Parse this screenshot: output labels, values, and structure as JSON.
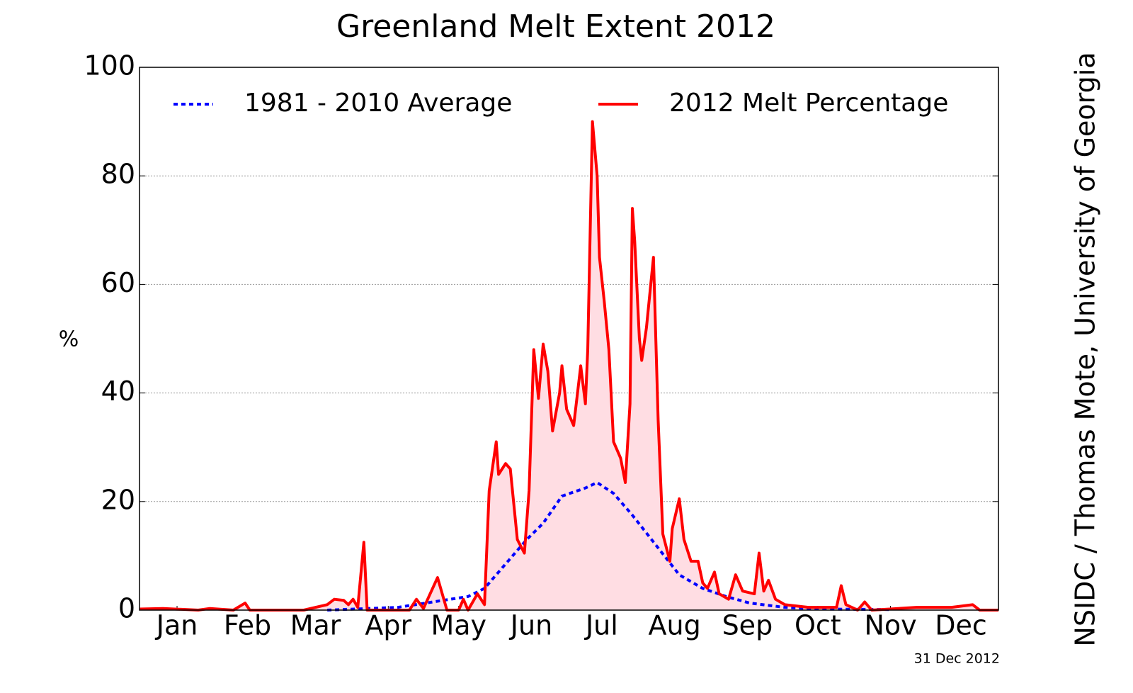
{
  "chart_data": {
    "type": "line",
    "title": "Greenland Melt Extent 2012",
    "y_label": "%",
    "credit": "NSIDC / Thomas Mote, University of Georgia",
    "date_note": "31 Dec 2012",
    "xlim": [
      0,
      366
    ],
    "xticks": [
      {
        "value": 16,
        "label": "Jan"
      },
      {
        "value": 46,
        "label": "Feb"
      },
      {
        "value": 75,
        "label": "Mar"
      },
      {
        "value": 106,
        "label": "Apr"
      },
      {
        "value": 136,
        "label": "May"
      },
      {
        "value": 167,
        "label": "Jun"
      },
      {
        "value": 197,
        "label": "Jul"
      },
      {
        "value": 228,
        "label": "Aug"
      },
      {
        "value": 259,
        "label": "Sep"
      },
      {
        "value": 289,
        "label": "Oct"
      },
      {
        "value": 320,
        "label": "Nov"
      },
      {
        "value": 350,
        "label": "Dec"
      }
    ],
    "ylim": [
      0,
      100
    ],
    "yticks": [
      0,
      20,
      40,
      60,
      80,
      100
    ],
    "grid": true,
    "legend": "top",
    "fill_color": "#ffdde3",
    "series": [
      {
        "name": "1981 - 2010 Average",
        "color": "#0000ff",
        "style": "dotted",
        "x": [
          80,
          110,
          125,
          140,
          147,
          155,
          165,
          172,
          180,
          190,
          195,
          202,
          210,
          220,
          230,
          240,
          250,
          260,
          275,
          290,
          320
        ],
        "values": [
          0,
          0.5,
          1.5,
          2.5,
          4,
          8,
          13,
          16,
          21,
          22.5,
          23.5,
          21.5,
          17.5,
          12,
          6.5,
          4,
          2.5,
          1.3,
          0.5,
          0.2,
          0.1
        ]
      },
      {
        "name": "2012 Melt Percentage",
        "color": "#ff0000",
        "style": "solid",
        "x": [
          0,
          10,
          25,
          30,
          40,
          45,
          47,
          70,
          80,
          83,
          87,
          89,
          91,
          93,
          95.6,
          97,
          115,
          118,
          121,
          127,
          131,
          136,
          138,
          140,
          144,
          147,
          149,
          152,
          153,
          156,
          158,
          161,
          164,
          166,
          168,
          170,
          172,
          174,
          176,
          179,
          180,
          182,
          185,
          188,
          190,
          191,
          193,
          195,
          196,
          198,
          200,
          202,
          205,
          207,
          209,
          210,
          211,
          213,
          214,
          216,
          219,
          221,
          223,
          226,
          227,
          230,
          232,
          235,
          238,
          240,
          242,
          245,
          247,
          251,
          254,
          257,
          262,
          264,
          266,
          268,
          271,
          275,
          285,
          297,
          299,
          301,
          306,
          309,
          312,
          331,
          346,
          355,
          358,
          366
        ],
        "values": [
          0.2,
          0.3,
          0,
          0.3,
          0,
          1.3,
          0,
          0,
          1,
          2,
          1.8,
          1,
          2,
          0.5,
          12.5,
          0,
          0,
          2,
          0.3,
          6,
          0,
          0,
          2,
          0,
          3,
          1,
          22,
          31,
          25,
          27,
          26,
          13,
          10.5,
          22,
          48,
          39,
          49,
          44,
          33,
          40,
          45,
          37,
          34,
          45,
          38,
          48,
          90,
          80,
          65,
          57,
          48,
          31,
          28,
          23.5,
          38,
          74,
          68,
          50,
          46,
          52,
          65,
          35,
          14,
          9,
          15,
          20.5,
          13,
          9,
          9,
          5,
          4,
          7,
          3,
          2,
          6.5,
          3.5,
          3,
          10.5,
          3.5,
          5.5,
          2,
          1,
          0.5,
          0.5,
          4.5,
          1,
          0,
          1.5,
          0,
          0.5,
          0.5,
          1,
          0,
          0
        ]
      }
    ]
  }
}
